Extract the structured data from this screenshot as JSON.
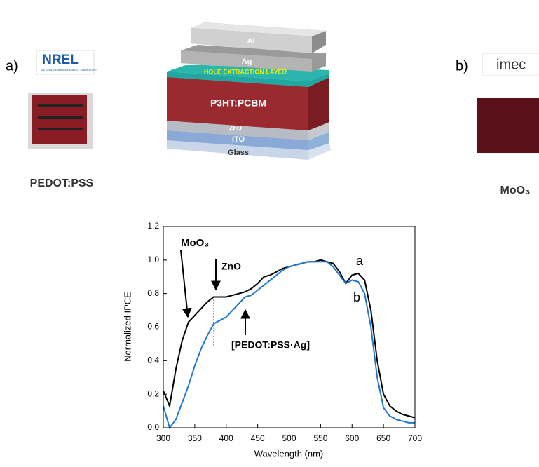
{
  "panel_a": {
    "label": "a)",
    "logo": "NREL",
    "logo_subtitle": "NATIONAL RENEWABLE ENERGY LABORATORY",
    "caption": "PEDOT:PSS"
  },
  "panel_b": {
    "label": "b)",
    "logo": "imec",
    "caption": "MoO₃"
  },
  "stack": {
    "layers": [
      "Al",
      "Ag",
      "HOLE EXTRACTION LAYER",
      "P3HT:PCBM",
      "ZnO",
      "ITO",
      "Glass"
    ]
  },
  "chart_data": {
    "type": "line",
    "xlabel": "Wavelength (nm)",
    "ylabel": "Normalized IPCE",
    "x": [
      300,
      310,
      320,
      330,
      340,
      350,
      360,
      370,
      380,
      390,
      400,
      410,
      420,
      430,
      440,
      450,
      460,
      470,
      480,
      490,
      500,
      510,
      520,
      530,
      540,
      550,
      560,
      570,
      580,
      590,
      600,
      610,
      620,
      630,
      640,
      650,
      660,
      670,
      680,
      690,
      700
    ],
    "series": [
      {
        "name": "a",
        "color": "#000000",
        "values": [
          0.22,
          0.13,
          0.35,
          0.52,
          0.63,
          0.67,
          0.71,
          0.75,
          0.78,
          0.78,
          0.78,
          0.79,
          0.8,
          0.81,
          0.83,
          0.86,
          0.9,
          0.91,
          0.93,
          0.95,
          0.96,
          0.97,
          0.98,
          0.99,
          0.99,
          1.0,
          0.99,
          0.98,
          0.93,
          0.86,
          0.91,
          0.92,
          0.88,
          0.7,
          0.4,
          0.2,
          0.13,
          0.1,
          0.08,
          0.07,
          0.06
        ]
      },
      {
        "name": "b",
        "color": "#1f78d1",
        "values": [
          0.13,
          0.0,
          0.05,
          0.15,
          0.25,
          0.37,
          0.47,
          0.55,
          0.62,
          0.64,
          0.66,
          0.7,
          0.74,
          0.78,
          0.79,
          0.82,
          0.85,
          0.88,
          0.91,
          0.94,
          0.96,
          0.97,
          0.98,
          0.99,
          0.99,
          0.99,
          0.99,
          0.96,
          0.91,
          0.86,
          0.88,
          0.87,
          0.8,
          0.6,
          0.3,
          0.12,
          0.07,
          0.05,
          0.04,
          0.03,
          0.03
        ]
      }
    ],
    "xlim": [
      300,
      700
    ],
    "xticks": [
      300,
      350,
      400,
      450,
      500,
      550,
      600,
      650,
      700
    ],
    "ylim": [
      0,
      1.2
    ],
    "yticks": [
      {
        "value": 0,
        "label": "0.0"
      },
      {
        "value": 0.2,
        "label": "0.2"
      },
      {
        "value": 0.4,
        "label": "0.4"
      },
      {
        "value": 0.6,
        "label": "0.6"
      },
      {
        "value": 0.8,
        "label": "0.8"
      },
      {
        "value": 1.0,
        "label": "1.0"
      },
      {
        "value": 1.2,
        "label": "1.2"
      }
    ],
    "annotations": [
      "MoO₃",
      "ZnO",
      "[PEDOT:PSS·Ag]"
    ]
  }
}
